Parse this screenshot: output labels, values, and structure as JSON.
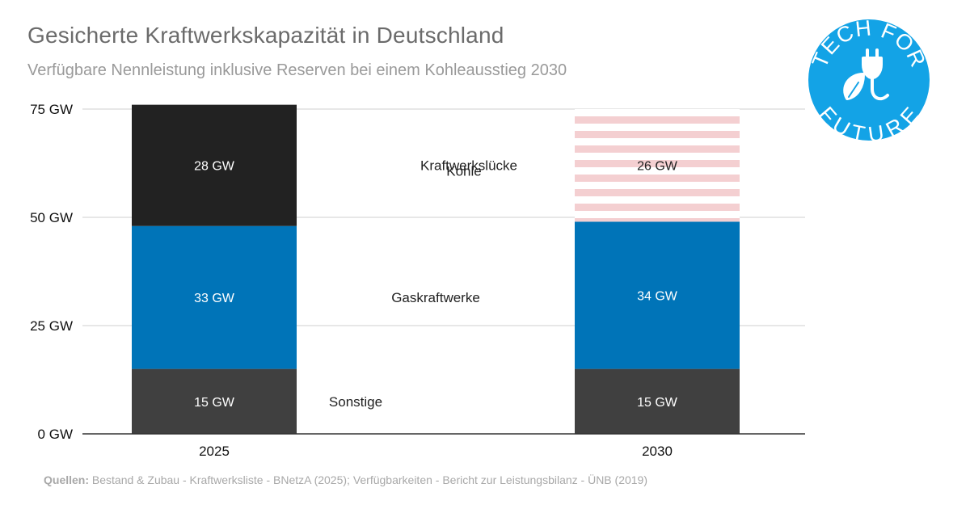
{
  "title": "Gesicherte Kraftwerkskapazität in Deutschland",
  "subtitle": "Verfügbare Nennleistung inklusive Reserven bei einem Kohleausstieg 2030",
  "source_label": "Quellen:",
  "source_text": "Bestand & Zubau - Kraftwerksliste - BNetzA (2025); Verfügbarkeiten - Bericht zur Leistungsbilanz - ÜNB (2019)",
  "logo": {
    "top": "TECH FOR",
    "bottom": "FUTURE",
    "icon": "plug-leaf-icon"
  },
  "colors": {
    "sonstige": "#404040",
    "gas": "#0074b8",
    "kohle": "#222222",
    "luecke": "#f4cfd1",
    "logo": "#13a3e6"
  },
  "chart_data": {
    "type": "bar",
    "stacked": true,
    "title": "Gesicherte Kraftwerkskapazität in Deutschland",
    "subtitle": "Verfügbare Nennleistung inklusive Reserven bei einem Kohleausstieg 2030",
    "categories": [
      "2025",
      "2030"
    ],
    "ylim": [
      0,
      75
    ],
    "yticks": [
      0,
      25,
      50,
      75
    ],
    "ytick_labels": [
      "0 GW",
      "25 GW",
      "50 GW",
      "75 GW"
    ],
    "grid": true,
    "series": [
      {
        "key": "sonstige",
        "name": "Sonstige",
        "values": [
          15,
          15
        ],
        "labels": [
          "15 GW",
          "15 GW"
        ]
      },
      {
        "key": "gas",
        "name": "Gaskraftwerke",
        "values": [
          33,
          34
        ],
        "labels": [
          "33 GW",
          "34 GW"
        ]
      },
      {
        "key": "kohle",
        "name": "Kohle",
        "values": [
          28,
          0
        ],
        "labels": [
          "28 GW",
          ""
        ]
      },
      {
        "key": "luecke",
        "name": "Kraftwerkslücke",
        "values": [
          0,
          26
        ],
        "labels": [
          "",
          "26 GW"
        ]
      }
    ]
  }
}
